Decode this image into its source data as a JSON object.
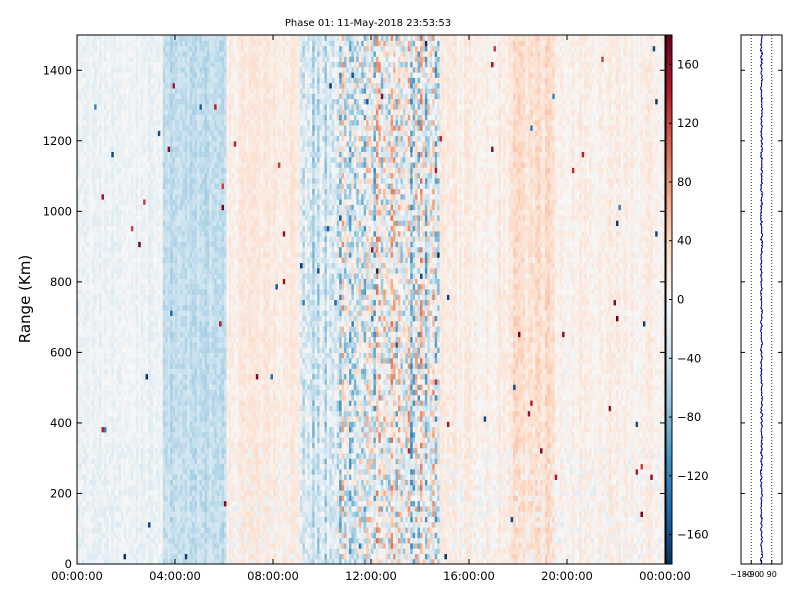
{
  "colors": {
    "colormap": [
      "#053061",
      "#2166ac",
      "#4393c3",
      "#92c5de",
      "#d1e5f0",
      "#f7f7f7",
      "#fddbc7",
      "#f4a582",
      "#d6604d",
      "#b2182b",
      "#67001f"
    ],
    "profile_line": "#0000cc"
  },
  "chart_data": [
    {
      "type": "heatmap",
      "title": "Phase 01: 11-May-2018 23:53:53",
      "xlabel": "",
      "ylabel": "Range (Km)",
      "x_range": [
        "00:00:00",
        "24:00:00"
      ],
      "x_tick_labels": [
        "00:00:00",
        "04:00:00",
        "08:00:00",
        "12:00:00",
        "16:00:00",
        "20:00:00",
        "00:00:00"
      ],
      "x_ticks_hours": [
        0,
        4,
        8,
        12,
        16,
        20,
        24
      ],
      "ylim": [
        0,
        1500
      ],
      "y_ticks": [
        0,
        200,
        400,
        600,
        800,
        1000,
        1200,
        1400
      ],
      "y_tick_labels": [
        "0",
        "200",
        "400",
        "600",
        "800",
        "1000",
        "1200",
        "1400"
      ],
      "value_range": [
        -180,
        180
      ],
      "colorbar_ticks": [
        -160,
        -120,
        -80,
        -40,
        0,
        40,
        80,
        120,
        160
      ],
      "colorbar_tick_labels": [
        "−160",
        "−120",
        "−80",
        "−40",
        "0",
        "40",
        "80",
        "120",
        "160"
      ],
      "time_bin_hours": 0.1,
      "range_bin_km": 15,
      "bands": [
        {
          "start_hour": 0.0,
          "end_hour": 3.5,
          "level": -8,
          "spread": 22,
          "note": "light blue-white"
        },
        {
          "start_hour": 3.5,
          "end_hour": 6.0,
          "level": -45,
          "spread": 25,
          "note": "light blue strip"
        },
        {
          "start_hour": 6.0,
          "end_hour": 9.0,
          "level": 15,
          "spread": 22,
          "note": "light orange"
        },
        {
          "start_hour": 9.0,
          "end_hour": 10.5,
          "level": -35,
          "spread": 60,
          "note": "speckled blue"
        },
        {
          "start_hour": 10.5,
          "end_hour": 14.7,
          "level": -10,
          "spread": 130,
          "note": "strong red/blue noise"
        },
        {
          "start_hour": 14.7,
          "end_hour": 17.5,
          "level": 12,
          "spread": 25,
          "note": "light orange"
        },
        {
          "start_hour": 17.5,
          "end_hour": 19.5,
          "level": 25,
          "spread": 30,
          "note": "orange"
        },
        {
          "start_hour": 19.5,
          "end_hour": 24.0,
          "level": 10,
          "spread": 25,
          "note": "light orange"
        }
      ]
    },
    {
      "type": "line",
      "title": "",
      "xlabel": "",
      "ylabel": "",
      "xlim": [
        -180,
        180
      ],
      "x_ticks": [
        -180,
        -90,
        0,
        90
      ],
      "x_tick_labels": [
        "−180",
        "−90",
        "0",
        "90"
      ],
      "x_gridlines": [
        -90,
        0,
        90
      ],
      "grid_style": "dotted",
      "ylim": [
        0,
        1500
      ],
      "description": "mean phase vs range, oscillating near 0"
    }
  ]
}
